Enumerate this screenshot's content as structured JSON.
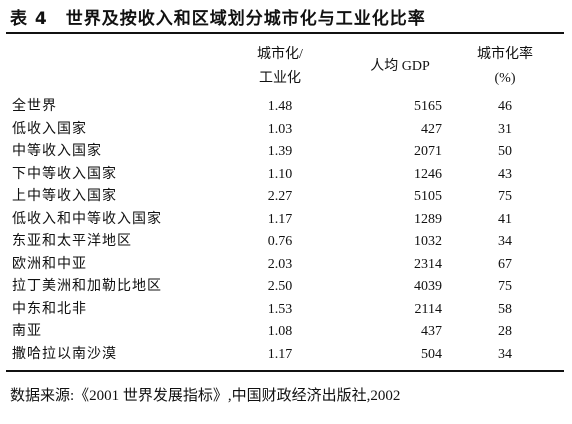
{
  "header": {
    "title": "表 4　世界及按收入和区域划分城市化与工业化比率"
  },
  "table": {
    "columns": [
      [
        "城市化/",
        "工业化"
      ],
      [
        "人均 GDP"
      ],
      [
        "城市化率",
        "(%)"
      ]
    ],
    "rows": [
      [
        "全世界",
        "1.48",
        "5165",
        "46"
      ],
      [
        "低收入国家",
        "1.03",
        "427",
        "31"
      ],
      [
        "中等收入国家",
        "1.39",
        "2071",
        "50"
      ],
      [
        "下中等收入国家",
        "1.10",
        "1246",
        "43"
      ],
      [
        "上中等收入国家",
        "2.27",
        "5105",
        "75"
      ],
      [
        "低收入和中等收入国家",
        "1.17",
        "1289",
        "41"
      ],
      [
        "东亚和太平洋地区",
        "0.76",
        "1032",
        "34"
      ],
      [
        "欧洲和中亚",
        "2.03",
        "2314",
        "67"
      ],
      [
        "拉丁美洲和加勒比地区",
        "2.50",
        "4039",
        "75"
      ],
      [
        "中东和北非",
        "1.53",
        "2114",
        "58"
      ],
      [
        "南亚",
        "1.08",
        "437",
        "28"
      ],
      [
        "撒哈拉以南沙漠",
        "1.17",
        "504",
        "34"
      ]
    ]
  },
  "footer": {
    "source": "数据来源:《2001 世界发展指标》,中国财政经济出版社,2002"
  }
}
